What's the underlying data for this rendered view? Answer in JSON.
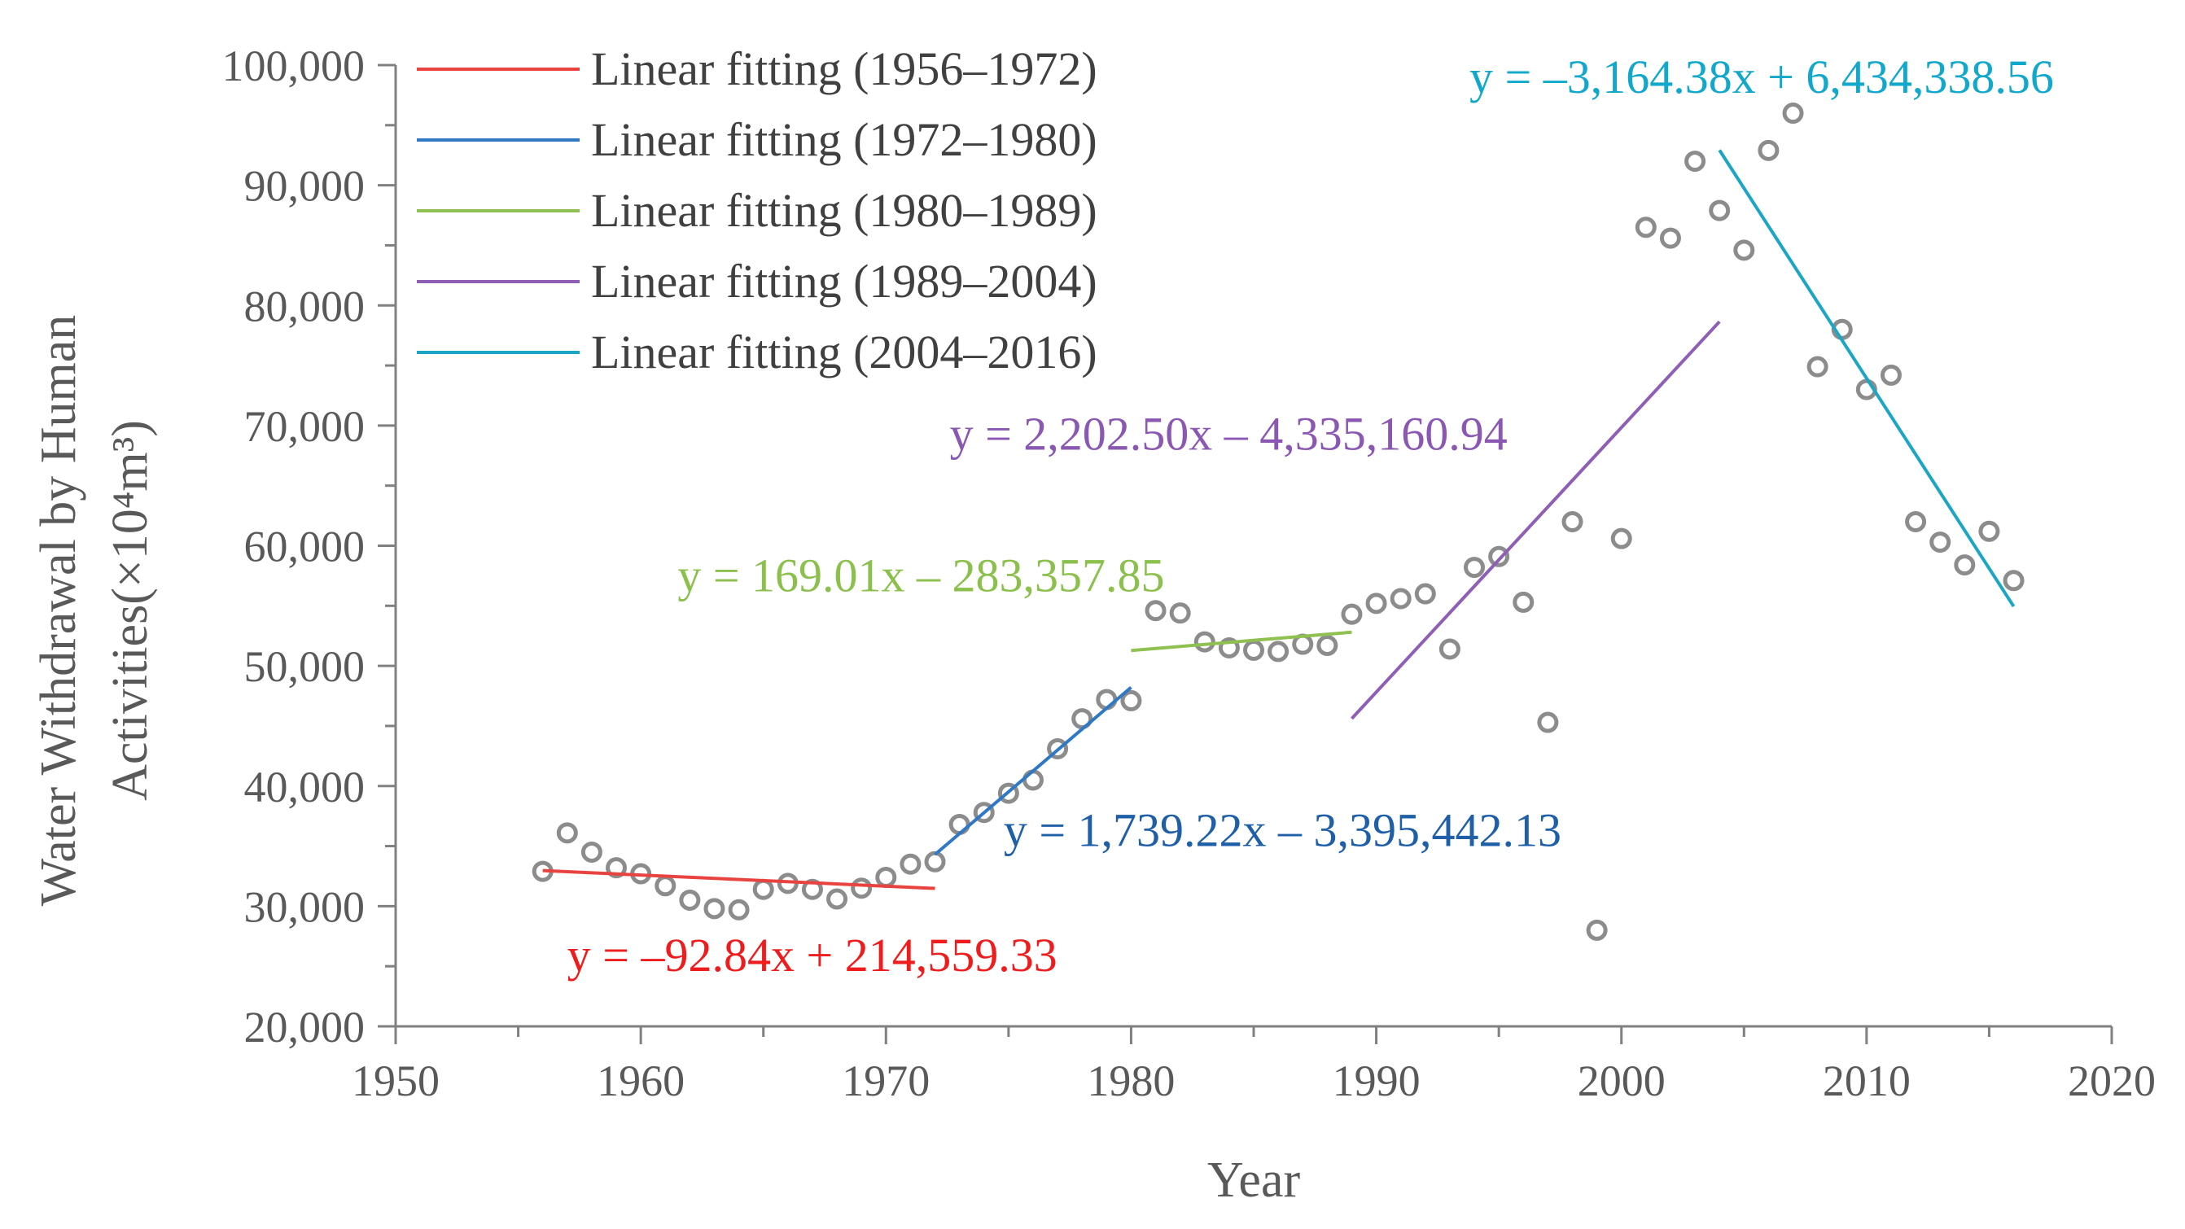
{
  "chart_data": {
    "type": "scatter",
    "title": "",
    "xlabel": "Year",
    "ylabel_line1": "Water Withdrawal by Human",
    "ylabel_line2": "Activities(×10⁴m³)",
    "xlim": [
      1950,
      2020
    ],
    "ylim": [
      20000,
      100000
    ],
    "x_ticks": [
      1950,
      1960,
      1970,
      1980,
      1990,
      2000,
      2010,
      2020
    ],
    "x_tick_labels": [
      "1950",
      "1960",
      "1970",
      "1980",
      "1990",
      "2000",
      "2010",
      "2020"
    ],
    "y_ticks": [
      20000,
      30000,
      40000,
      50000,
      60000,
      70000,
      80000,
      90000,
      100000
    ],
    "y_tick_labels": [
      "20,000",
      "30,000",
      "40,000",
      "50,000",
      "60,000",
      "70,000",
      "80,000",
      "90,000",
      "100,000"
    ],
    "grid": false,
    "legend_position": "top-left",
    "points": {
      "x": [
        1956,
        1957,
        1958,
        1959,
        1960,
        1961,
        1962,
        1963,
        1964,
        1965,
        1966,
        1967,
        1968,
        1969,
        1970,
        1971,
        1972,
        1973,
        1974,
        1975,
        1976,
        1977,
        1978,
        1979,
        1980,
        1981,
        1982,
        1983,
        1984,
        1985,
        1986,
        1987,
        1988,
        1989,
        1990,
        1991,
        1992,
        1993,
        1994,
        1995,
        1996,
        1997,
        1998,
        1999,
        2000,
        2001,
        2002,
        2003,
        2004,
        2005,
        2006,
        2007,
        2008,
        2009,
        2010,
        2011,
        2012,
        2013,
        2014,
        2015,
        2016
      ],
      "y": [
        32900,
        36100,
        34500,
        33200,
        32700,
        31700,
        30500,
        29800,
        29700,
        31400,
        31900,
        31400,
        30600,
        31500,
        32400,
        33500,
        33700,
        36800,
        37800,
        39400,
        40500,
        43100,
        45600,
        47200,
        47100,
        54600,
        54400,
        52000,
        51500,
        51300,
        51200,
        51800,
        51700,
        54300,
        55200,
        55600,
        56000,
        51400,
        58200,
        59100,
        55300,
        45300,
        62000,
        28000,
        60600,
        86500,
        85600,
        92000,
        87900,
        84600,
        92900,
        96000,
        74900,
        78000,
        73000,
        74200,
        62000,
        60300,
        58400,
        61200,
        57100
      ]
    },
    "marker_color": "#8c8c8c",
    "series": [
      {
        "name": "Linear fitting (1956–1972)",
        "x": [
          1956,
          1972
        ],
        "slope": -92.84,
        "intercept": 214559.33,
        "color": "#e8433f",
        "equation": "y = –92.84x + 214,559.33",
        "equation_color": "#ee1c1c",
        "equation_anchor": [
          1957,
          24600
        ]
      },
      {
        "name": "Linear fitting (1972–1980)",
        "x": [
          1972,
          1980
        ],
        "slope": 1739.22,
        "intercept": -3395442.13,
        "color": "#2f78c4",
        "equation": "y = 1,739.22x – 3,395,442.13",
        "equation_color": "#1f5fa8",
        "equation_anchor": [
          1974.8,
          35000
        ]
      },
      {
        "name": "Linear fitting (1980–1989)",
        "x": [
          1980,
          1989
        ],
        "slope": 169.01,
        "intercept": -283357.85,
        "color": "#8fc150",
        "equation": "y = 169.01x – 283,357.85",
        "equation_color": "#8cc04d",
        "equation_anchor": [
          1961.5,
          56200
        ]
      },
      {
        "name": "Linear fitting (1989–2004)",
        "x": [
          1989,
          2004
        ],
        "slope": 2202.5,
        "intercept": -4335160.94,
        "color": "#8f5fb5",
        "equation": "y = 2,202.50x – 4,335,160.94",
        "equation_color": "#8a57b2",
        "equation_anchor": [
          1972.6,
          68000
        ]
      },
      {
        "name": "Linear fitting (2004–2016)",
        "x": [
          2004,
          2016
        ],
        "slope": -3164.38,
        "intercept": 6434338.56,
        "color": "#1aa6c4",
        "equation": "y = –3,164.38x + 6,434,338.56",
        "equation_color": "#12a8cc",
        "equation_anchor": [
          1993.8,
          97700
        ]
      }
    ]
  }
}
